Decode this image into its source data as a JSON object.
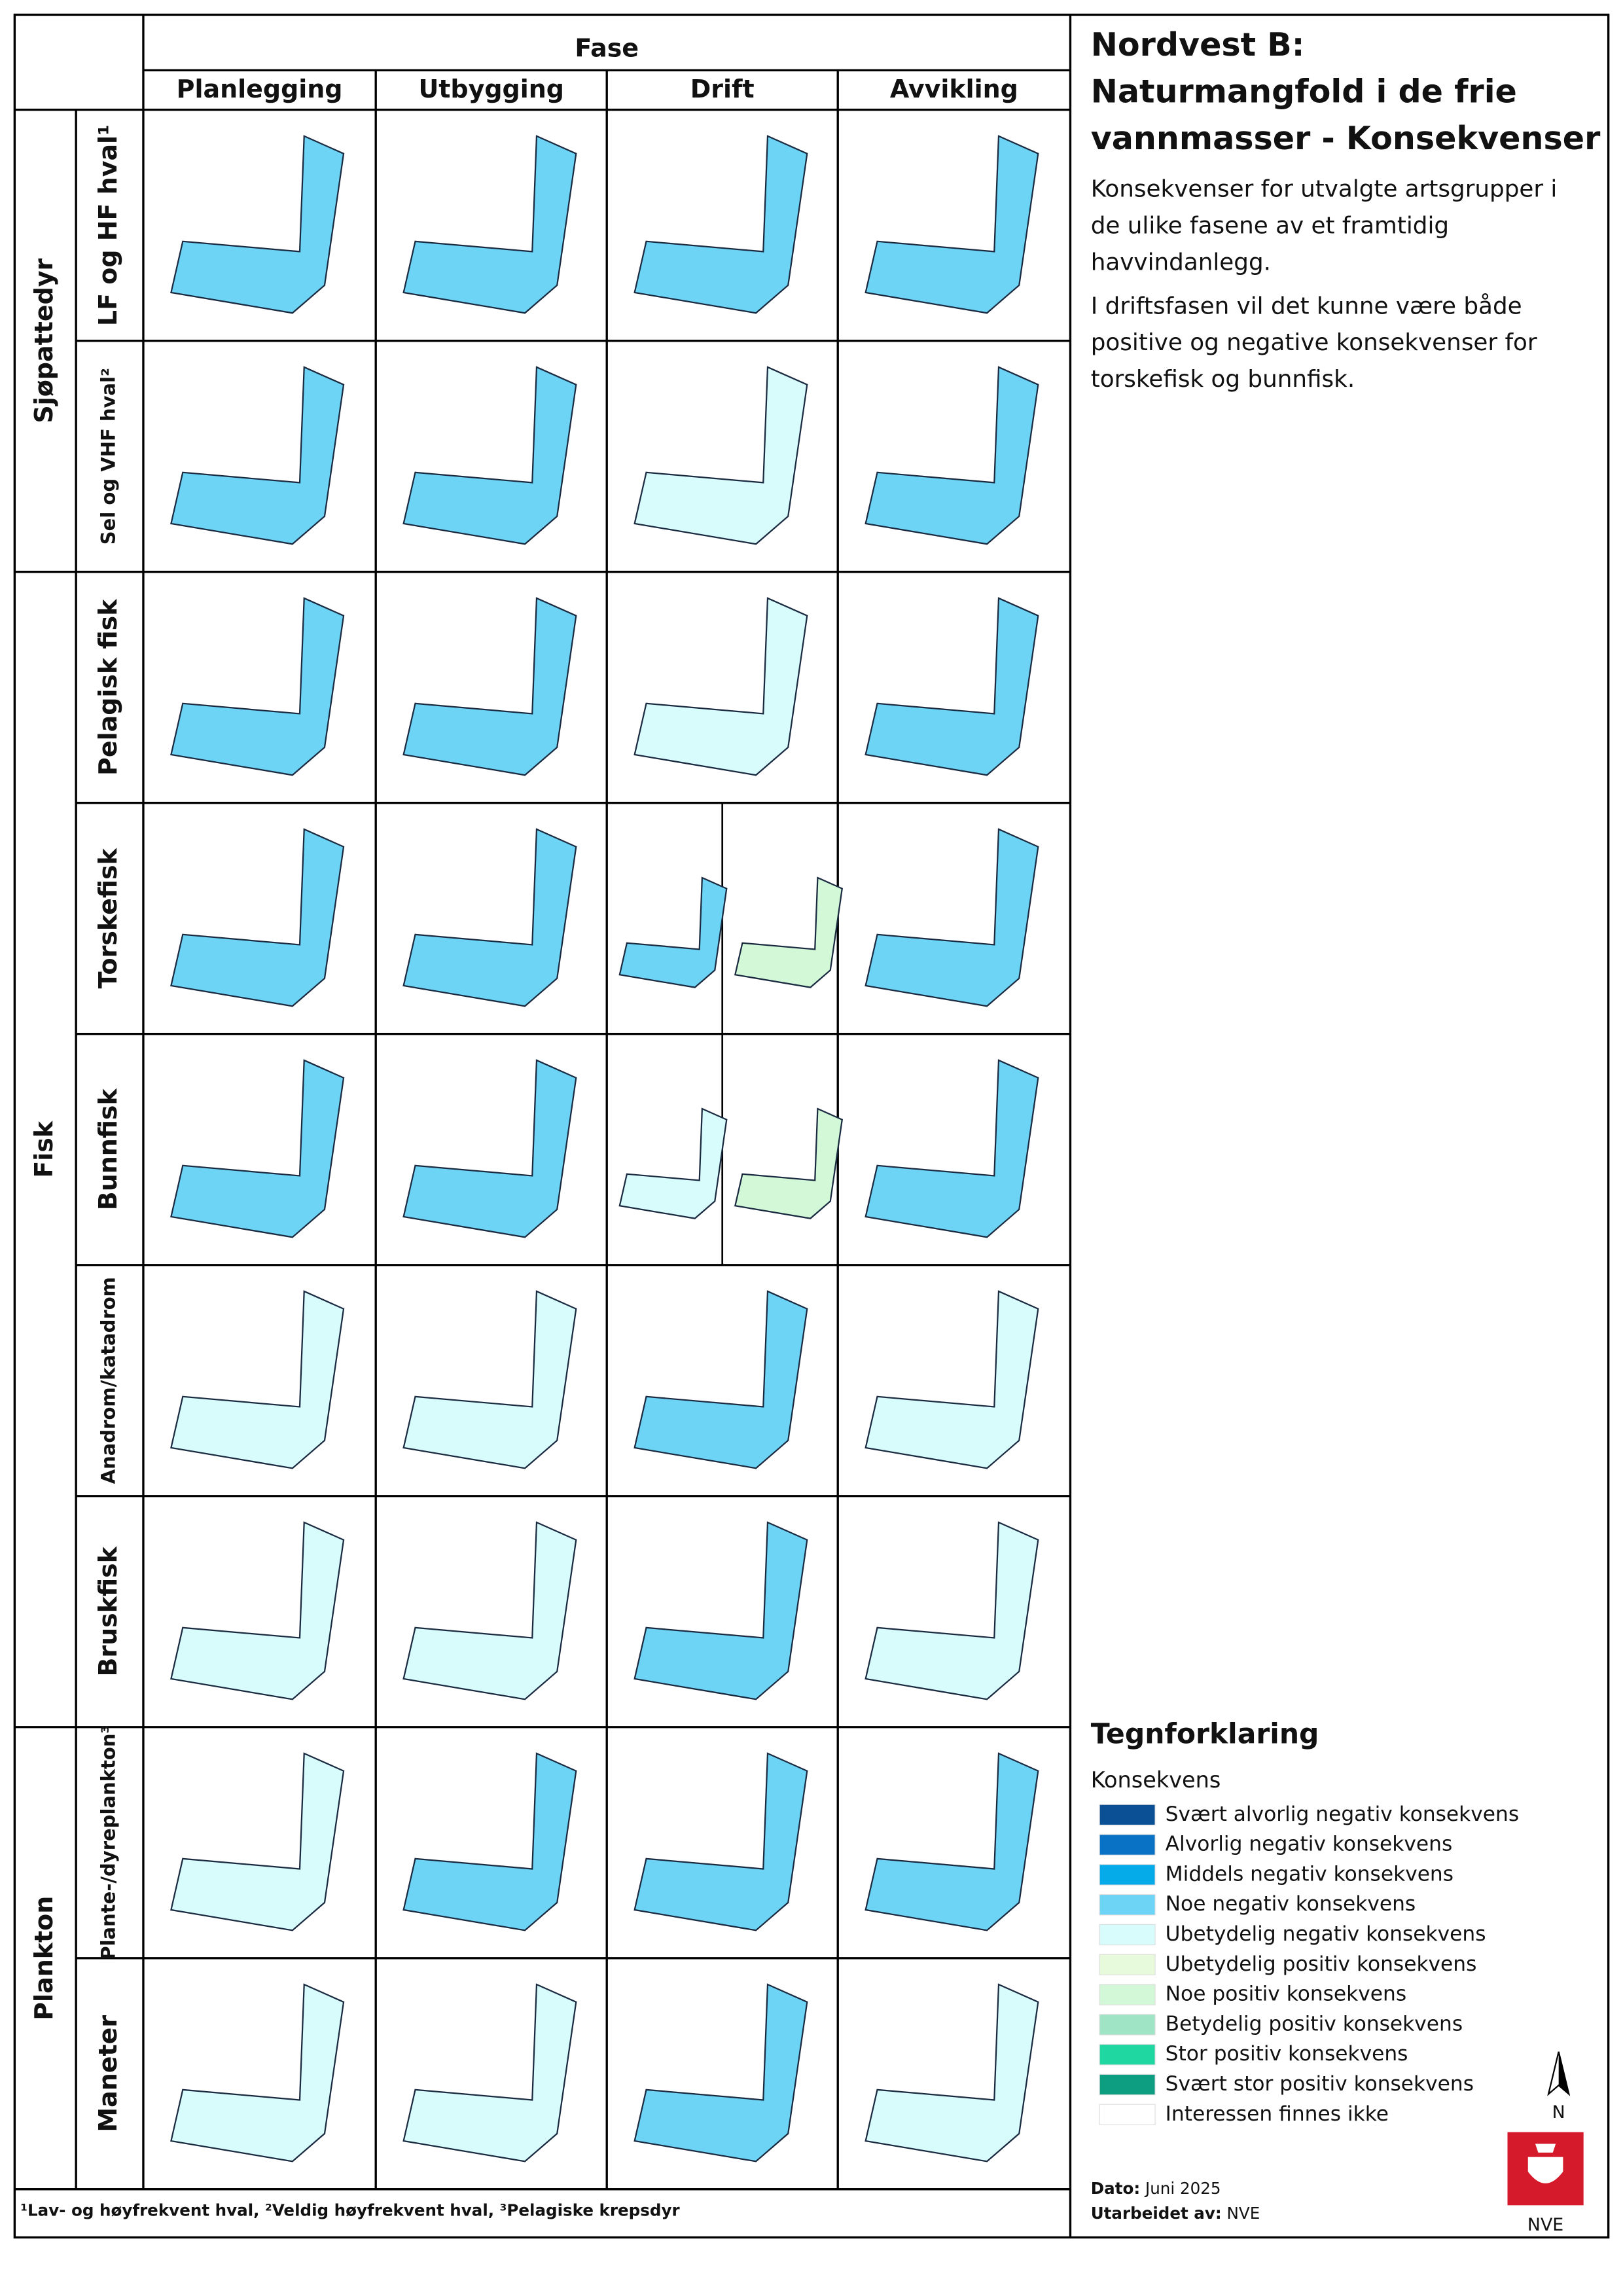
{
  "header": {
    "fase": "Fase",
    "phases": [
      "Planlegging",
      "Utbygging",
      "Drift",
      "Avvikling"
    ]
  },
  "groups": [
    {
      "label": "Sjøpattedyr",
      "rows": [
        0,
        1
      ]
    },
    {
      "label": "Fisk",
      "rows": [
        2,
        6
      ]
    },
    {
      "label": "Plankton",
      "rows": [
        7,
        8
      ]
    }
  ],
  "rows": [
    {
      "label": "LF og HF hval¹",
      "cells": [
        3,
        3,
        3,
        3
      ]
    },
    {
      "label": "Sel og VHF hval²",
      "cells": [
        3,
        3,
        4,
        3
      ]
    },
    {
      "label": "Pelagisk fisk",
      "cells": [
        3,
        3,
        4,
        3
      ]
    },
    {
      "label": "Torskefisk",
      "cells": [
        3,
        3,
        [
          3,
          6
        ],
        3
      ]
    },
    {
      "label": "Bunnfisk",
      "cells": [
        3,
        3,
        [
          4,
          6
        ],
        3
      ]
    },
    {
      "label": "Anadrom/katadrom",
      "cells": [
        4,
        4,
        3,
        4
      ]
    },
    {
      "label": "Bruskfisk",
      "cells": [
        4,
        4,
        3,
        4
      ]
    },
    {
      "label": "Plante-/dyreplankton³",
      "cells": [
        4,
        3,
        3,
        3
      ]
    },
    {
      "label": "Maneter",
      "cells": [
        4,
        4,
        3,
        4
      ]
    }
  ],
  "footnote": "¹Lav- og høyfrekvent hval, ²Veldig høyfrekvent hval, ³Pelagiske krepsdyr",
  "panel": {
    "title_lines": [
      "Nordvest B:",
      "Naturmangfold i de frie",
      "vannmasser - Konsekvenser"
    ],
    "paragraphs": [
      [
        "Konsekvenser for utvalgte artsgrupper i",
        "de ulike fasene av et framtidig",
        "havvindanlegg."
      ],
      [
        "I driftsfasen vil det kunne være både",
        "positive og negative konsekvenser for",
        "torskefisk og bunnfisk."
      ]
    ]
  },
  "legend": {
    "title": "Tegnforklaring",
    "subtitle": "Konsekvens",
    "items": [
      {
        "label": "Svært alvorlig negativ konsekvens",
        "color": "#0b4f94"
      },
      {
        "label": "Alvorlig negativ konsekvens",
        "color": "#0a72c4"
      },
      {
        "label": "Middels negativ konsekvens",
        "color": "#05aae8"
      },
      {
        "label": "Noe negativ konsekvens",
        "color": "#6dd4f5"
      },
      {
        "label": "Ubetydelig negativ konsekvens",
        "color": "#d8fbfb"
      },
      {
        "label": "Ubetydelig positiv konsekvens",
        "color": "#e7fadc"
      },
      {
        "label": "Noe positiv konsekvens",
        "color": "#d2f8d8"
      },
      {
        "label": "Betydelig positiv konsekvens",
        "color": "#9fe4c4"
      },
      {
        "label": "Stor positiv konsekvens",
        "color": "#1fd7a1"
      },
      {
        "label": "Svært stor positiv konsekvens",
        "color": "#0d9d80"
      },
      {
        "label": "Interessen finnes ikke",
        "color": "#ffffff"
      }
    ]
  },
  "meta": {
    "date_label": "Dato:",
    "date": "Juni 2025",
    "author_label": "Utarbeidet av:",
    "author": "NVE",
    "north": "N",
    "logo": "NVE"
  }
}
